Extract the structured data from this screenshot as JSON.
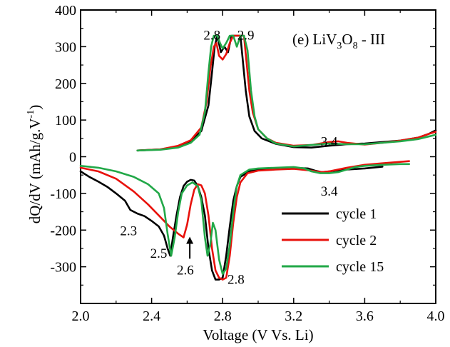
{
  "chart_data": {
    "type": "line",
    "title": "",
    "panel_label": {
      "prefix": "(e) LiV",
      "sub1": "3",
      "mid": "O",
      "sub2": "8",
      "suffix": " - III"
    },
    "xlabel": "Voltage (V Vs. Li)",
    "ylabel": {
      "main": "dQ/dV (mAh/g.V",
      "superscript": "-1",
      "close": ")"
    },
    "xlim": [
      2.0,
      4.0
    ],
    "ylim": [
      -400,
      400
    ],
    "xticks": [
      "2.0",
      "2.4",
      "2.8",
      "3.2",
      "3.6",
      "4.0"
    ],
    "yticks": [
      "400",
      "300",
      "200",
      "100",
      "0",
      "-100",
      "-200",
      "-300"
    ],
    "legend_position": "lower-right",
    "series": [
      {
        "name": "cycle 1",
        "color": "#000000",
        "segments": [
          [
            [
              2.32,
              17
            ],
            [
              2.45,
              20
            ],
            [
              2.55,
              28
            ],
            [
              2.62,
              42
            ],
            [
              2.68,
              70
            ],
            [
              2.72,
              140
            ],
            [
              2.74,
              230
            ],
            [
              2.755,
              300
            ],
            [
              2.77,
              330
            ],
            [
              2.79,
              285
            ],
            [
              2.81,
              300
            ],
            [
              2.83,
              285
            ],
            [
              2.85,
              330
            ],
            [
              2.88,
              330
            ],
            [
              2.9,
              330
            ],
            [
              2.91,
              280
            ],
            [
              2.93,
              180
            ],
            [
              2.95,
              110
            ],
            [
              2.98,
              70
            ],
            [
              3.02,
              50
            ],
            [
              3.1,
              35
            ],
            [
              3.2,
              26
            ],
            [
              3.3,
              25
            ],
            [
              3.4,
              30
            ],
            [
              3.5,
              34
            ],
            [
              3.6,
              36
            ],
            [
              3.7,
              40
            ],
            [
              3.8,
              44
            ],
            [
              3.9,
              52
            ],
            [
              3.96,
              62
            ],
            [
              4.0,
              72
            ]
          ],
          [
            [
              2.0,
              -40
            ],
            [
              2.05,
              -55
            ],
            [
              2.1,
              -68
            ],
            [
              2.15,
              -82
            ],
            [
              2.2,
              -100
            ],
            [
              2.25,
              -120
            ],
            [
              2.28,
              -145
            ],
            [
              2.32,
              -155
            ],
            [
              2.36,
              -162
            ],
            [
              2.4,
              -175
            ],
            [
              2.44,
              -190
            ],
            [
              2.47,
              -215
            ],
            [
              2.49,
              -250
            ],
            [
              2.505,
              -270
            ],
            [
              2.52,
              -220
            ],
            [
              2.54,
              -160
            ],
            [
              2.56,
              -110
            ],
            [
              2.58,
              -80
            ],
            [
              2.6,
              -68
            ],
            [
              2.62,
              -63
            ],
            [
              2.64,
              -65
            ],
            [
              2.66,
              -80
            ],
            [
              2.68,
              -110
            ],
            [
              2.7,
              -160
            ],
            [
              2.72,
              -250
            ],
            [
              2.74,
              -310
            ],
            [
              2.76,
              -335
            ],
            [
              2.78,
              -335
            ],
            [
              2.8,
              -330
            ],
            [
              2.82,
              -270
            ],
            [
              2.84,
              -190
            ],
            [
              2.86,
              -120
            ],
            [
              2.88,
              -80
            ],
            [
              2.9,
              -55
            ],
            [
              2.95,
              -40
            ],
            [
              3.0,
              -35
            ],
            [
              3.1,
              -32
            ],
            [
              3.2,
              -30
            ],
            [
              3.28,
              -32
            ],
            [
              3.32,
              -38
            ],
            [
              3.36,
              -42
            ],
            [
              3.4,
              -40
            ],
            [
              3.5,
              -35
            ],
            [
              3.6,
              -32
            ],
            [
              3.7,
              -27
            ]
          ]
        ]
      },
      {
        "name": "cycle 2",
        "color": "#e8120c",
        "segments": [
          [
            [
              2.32,
              17
            ],
            [
              2.45,
              20
            ],
            [
              2.55,
              30
            ],
            [
              2.62,
              45
            ],
            [
              2.68,
              80
            ],
            [
              2.71,
              150
            ],
            [
              2.73,
              240
            ],
            [
              2.75,
              300
            ],
            [
              2.765,
              310
            ],
            [
              2.78,
              275
            ],
            [
              2.8,
              265
            ],
            [
              2.82,
              280
            ],
            [
              2.84,
              310
            ],
            [
              2.86,
              330
            ],
            [
              2.89,
              330
            ],
            [
              2.92,
              330
            ],
            [
              2.93,
              280
            ],
            [
              2.95,
              180
            ],
            [
              2.97,
              120
            ],
            [
              3.0,
              75
            ],
            [
              3.05,
              50
            ],
            [
              3.1,
              38
            ],
            [
              3.2,
              30
            ],
            [
              3.3,
              32
            ],
            [
              3.4,
              40
            ],
            [
              3.45,
              42
            ],
            [
              3.5,
              38
            ],
            [
              3.6,
              33
            ],
            [
              3.7,
              38
            ],
            [
              3.8,
              44
            ],
            [
              3.9,
              52
            ],
            [
              3.96,
              62
            ],
            [
              4.0,
              68
            ]
          ],
          [
            [
              2.0,
              -30
            ],
            [
              2.1,
              -40
            ],
            [
              2.2,
              -60
            ],
            [
              2.3,
              -95
            ],
            [
              2.38,
              -130
            ],
            [
              2.44,
              -160
            ],
            [
              2.5,
              -190
            ],
            [
              2.55,
              -210
            ],
            [
              2.58,
              -220
            ],
            [
              2.6,
              -185
            ],
            [
              2.62,
              -130
            ],
            [
              2.64,
              -90
            ],
            [
              2.66,
              -75
            ],
            [
              2.68,
              -78
            ],
            [
              2.7,
              -100
            ],
            [
              2.72,
              -160
            ],
            [
              2.74,
              -250
            ],
            [
              2.76,
              -310
            ],
            [
              2.78,
              -330
            ],
            [
              2.8,
              -335
            ],
            [
              2.82,
              -330
            ],
            [
              2.84,
              -270
            ],
            [
              2.86,
              -180
            ],
            [
              2.88,
              -110
            ],
            [
              2.9,
              -70
            ],
            [
              2.94,
              -45
            ],
            [
              3.0,
              -38
            ],
            [
              3.1,
              -35
            ],
            [
              3.2,
              -33
            ],
            [
              3.3,
              -38
            ],
            [
              3.36,
              -42
            ],
            [
              3.4,
              -40
            ],
            [
              3.5,
              -30
            ],
            [
              3.6,
              -22
            ],
            [
              3.7,
              -18
            ],
            [
              3.8,
              -14
            ],
            [
              3.85,
              -12
            ]
          ]
        ]
      },
      {
        "name": "cycle 15",
        "color": "#22a848",
        "segments": [
          [
            [
              2.32,
              17
            ],
            [
              2.45,
              19
            ],
            [
              2.55,
              25
            ],
            [
              2.62,
              38
            ],
            [
              2.67,
              60
            ],
            [
              2.7,
              120
            ],
            [
              2.72,
              230
            ],
            [
              2.735,
              300
            ],
            [
              2.75,
              330
            ],
            [
              2.77,
              330
            ],
            [
              2.785,
              310
            ],
            [
              2.8,
              295
            ],
            [
              2.82,
              310
            ],
            [
              2.84,
              330
            ],
            [
              2.86,
              330
            ],
            [
              2.88,
              300
            ],
            [
              2.9,
              330
            ],
            [
              2.92,
              330
            ],
            [
              2.94,
              290
            ],
            [
              2.96,
              180
            ],
            [
              2.98,
              110
            ],
            [
              3.0,
              75
            ],
            [
              3.05,
              50
            ],
            [
              3.1,
              36
            ],
            [
              3.2,
              28
            ],
            [
              3.3,
              32
            ],
            [
              3.4,
              36
            ],
            [
              3.5,
              34
            ],
            [
              3.6,
              34
            ],
            [
              3.7,
              38
            ],
            [
              3.8,
              42
            ],
            [
              3.9,
              48
            ],
            [
              3.96,
              55
            ],
            [
              4.0,
              60
            ]
          ],
          [
            [
              2.0,
              -25
            ],
            [
              2.1,
              -30
            ],
            [
              2.2,
              -40
            ],
            [
              2.3,
              -55
            ],
            [
              2.38,
              -75
            ],
            [
              2.44,
              -100
            ],
            [
              2.47,
              -140
            ],
            [
              2.49,
              -210
            ],
            [
              2.51,
              -270
            ],
            [
              2.53,
              -220
            ],
            [
              2.55,
              -150
            ],
            [
              2.57,
              -100
            ],
            [
              2.6,
              -78
            ],
            [
              2.63,
              -70
            ],
            [
              2.66,
              -80
            ],
            [
              2.68,
              -120
            ],
            [
              2.7,
              -220
            ],
            [
              2.715,
              -270
            ],
            [
              2.73,
              -240
            ],
            [
              2.745,
              -180
            ],
            [
              2.76,
              -200
            ],
            [
              2.78,
              -280
            ],
            [
              2.8,
              -320
            ],
            [
              2.82,
              -305
            ],
            [
              2.84,
              -240
            ],
            [
              2.86,
              -150
            ],
            [
              2.88,
              -80
            ],
            [
              2.9,
              -50
            ],
            [
              2.95,
              -35
            ],
            [
              3.0,
              -32
            ],
            [
              3.1,
              -30
            ],
            [
              3.2,
              -28
            ],
            [
              3.26,
              -32
            ],
            [
              3.3,
              -40
            ],
            [
              3.35,
              -45
            ],
            [
              3.4,
              -45
            ],
            [
              3.45,
              -42
            ],
            [
              3.5,
              -35
            ],
            [
              3.55,
              -28
            ],
            [
              3.6,
              -25
            ],
            [
              3.7,
              -22
            ],
            [
              3.8,
              -20
            ],
            [
              3.85,
              -20
            ]
          ]
        ]
      }
    ],
    "annotations": [
      {
        "text": "2.8",
        "x": 2.74,
        "y": 333,
        "anchor": "middle"
      },
      {
        "text": "2.9",
        "x": 2.93,
        "y": 333,
        "anchor": "middle"
      },
      {
        "text": "3.4",
        "x": 3.4,
        "y": 43,
        "anchor": "middle"
      },
      {
        "text": "3.4",
        "x": 3.4,
        "y": -92,
        "anchor": "middle"
      },
      {
        "text": "2.3",
        "x": 2.27,
        "y": -200,
        "anchor": "middle"
      },
      {
        "text": "2.5",
        "x": 2.44,
        "y": -262,
        "anchor": "middle"
      },
      {
        "text": "2.6",
        "x": 2.59,
        "y": -308,
        "anchor": "middle"
      },
      {
        "text": "2.8",
        "x": 2.875,
        "y": -333,
        "anchor": "middle"
      }
    ],
    "arrow": {
      "x": 2.615,
      "y_from": -278,
      "y_to": -218
    }
  }
}
